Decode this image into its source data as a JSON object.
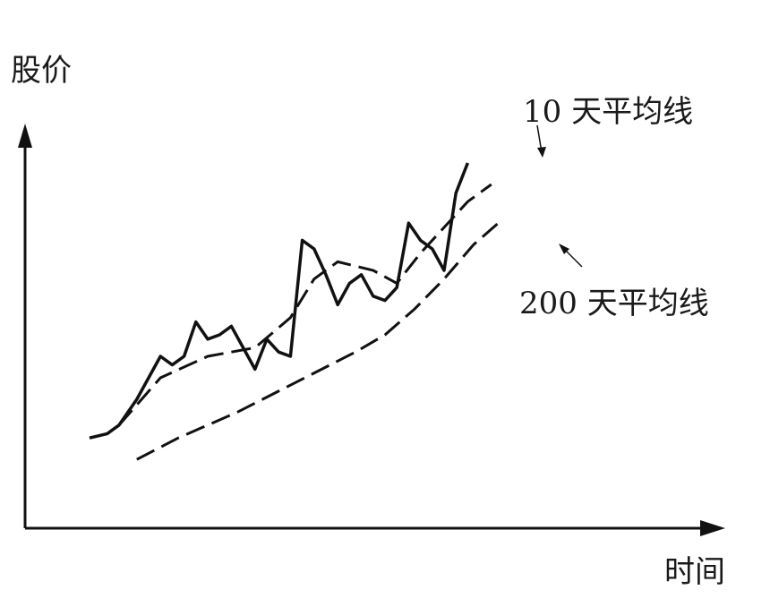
{
  "chart_data": {
    "type": "line",
    "title": "",
    "ylabel": "股价",
    "xlabel": "时间",
    "grid": false,
    "legend": "none",
    "xlim": [
      0,
      100
    ],
    "ylim": [
      0,
      100
    ],
    "series": [
      {
        "style": "solid",
        "color": "#111111",
        "points": [
          [
            0,
            21
          ],
          [
            3,
            22
          ],
          [
            5,
            24
          ],
          [
            8,
            30
          ],
          [
            10,
            35
          ],
          [
            12,
            40
          ],
          [
            14,
            38
          ],
          [
            16,
            40
          ],
          [
            18,
            48
          ],
          [
            20,
            44
          ],
          [
            22,
            45
          ],
          [
            24,
            47
          ],
          [
            26,
            42
          ],
          [
            28,
            37
          ],
          [
            30,
            44
          ],
          [
            32,
            41
          ],
          [
            34,
            40
          ],
          [
            36,
            67
          ],
          [
            38,
            65
          ],
          [
            40,
            59
          ],
          [
            42,
            52
          ],
          [
            44,
            57
          ],
          [
            46,
            59
          ],
          [
            48,
            54
          ],
          [
            50,
            53
          ],
          [
            52,
            56
          ],
          [
            54,
            71
          ],
          [
            56,
            67
          ],
          [
            58,
            65
          ],
          [
            60,
            60
          ],
          [
            62,
            78
          ],
          [
            64,
            85
          ]
        ]
      },
      {
        "name": "10 天平均线",
        "style": "dashed",
        "color": "#111111",
        "points": [
          [
            5,
            24
          ],
          [
            12,
            35
          ],
          [
            20,
            40
          ],
          [
            28,
            42
          ],
          [
            34,
            49
          ],
          [
            38,
            58
          ],
          [
            42,
            62
          ],
          [
            48,
            60
          ],
          [
            52,
            57
          ],
          [
            56,
            64
          ],
          [
            60,
            70
          ],
          [
            64,
            76
          ],
          [
            68,
            80
          ]
        ]
      },
      {
        "name": "200 天平均线",
        "style": "dashed",
        "color": "#111111",
        "points": [
          [
            8,
            16
          ],
          [
            15,
            21
          ],
          [
            25,
            27
          ],
          [
            35,
            34
          ],
          [
            45,
            41
          ],
          [
            50,
            45
          ],
          [
            55,
            51
          ],
          [
            60,
            58
          ],
          [
            65,
            66
          ],
          [
            70,
            72
          ]
        ]
      }
    ],
    "annotations": [
      {
        "text": "10 天平均线",
        "series": 1
      },
      {
        "text": "200 天平均线",
        "series": 2
      }
    ]
  }
}
